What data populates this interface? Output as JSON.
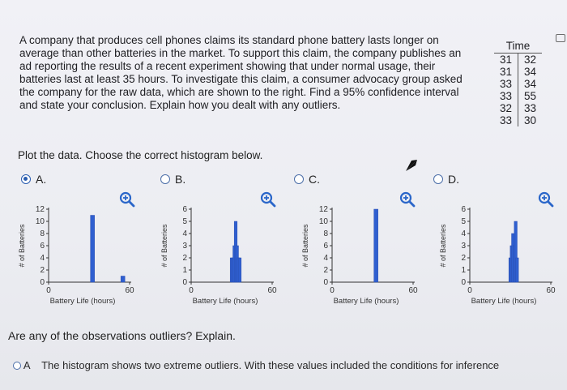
{
  "question": {
    "text": "A company that produces cell phones claims its standard phone battery lasts longer on average than other batteries in the market. To support this claim, the company publishes an ad reporting the results of a recent experiment showing that under normal usage, their batteries last at least 35 hours. To investigate this claim, a consumer advocacy group asked the company for the raw data, which are shown to the right. Find a 95% confidence interval and state your conclusion. Explain how you dealt with any outliers."
  },
  "time_table": {
    "header": "Time",
    "rows": [
      [
        "31",
        "32"
      ],
      [
        "31",
        "34"
      ],
      [
        "33",
        "34"
      ],
      [
        "33",
        "55"
      ],
      [
        "32",
        "33"
      ],
      [
        "33",
        "30"
      ]
    ]
  },
  "prompt": "Plot the data. Choose the correct histogram below.",
  "options": [
    {
      "letter": "A.",
      "selected": true
    },
    {
      "letter": "B.",
      "selected": false
    },
    {
      "letter": "C.",
      "selected": false
    },
    {
      "letter": "D.",
      "selected": false
    }
  ],
  "outliers_question": "Are any of the observations outliers? Explain.",
  "answer_option_letter": "A",
  "answer_option_text": "The histogram shows two extreme outliers. With these values included the conditions for inference",
  "colors": {
    "bar": "#2f5fd0",
    "radio": "#2a5db0",
    "zoom": "#2a66c9",
    "axis": "#333333"
  },
  "icons": {
    "zoom": "magnifier-plus-icon",
    "cursor": "pointer-arrow-icon",
    "tab": "window-tab-icon"
  },
  "chart_data": [
    {
      "type": "bar",
      "option": "A",
      "ylabel": "# of Batteries",
      "xlabel": "Battery Life (hours)",
      "yticks": [
        "12",
        "10",
        "8",
        "6",
        "4",
        "2",
        "0"
      ],
      "xticks": [
        "0",
        "60"
      ],
      "ylim": [
        0,
        12
      ],
      "xlim": [
        0,
        60
      ],
      "bins": [
        {
          "x": 32.5,
          "value": 11
        },
        {
          "x": 55,
          "value": 1
        }
      ]
    },
    {
      "type": "bar",
      "option": "B",
      "ylabel": "# of Batteries",
      "xlabel": "Battery Life (hours)",
      "yticks": [
        "6",
        "5",
        "4",
        "3",
        "2",
        "1",
        "0"
      ],
      "xticks": [
        "0",
        "60"
      ],
      "ylim": [
        0,
        6
      ],
      "xlim": [
        0,
        60
      ],
      "bins": [
        {
          "x": 30,
          "value": 2
        },
        {
          "x": 31,
          "value": 2
        },
        {
          "x": 32,
          "value": 3
        },
        {
          "x": 33,
          "value": 5
        },
        {
          "x": 34,
          "value": 3
        },
        {
          "x": 35,
          "value": 2
        },
        {
          "x": 36,
          "value": 2
        }
      ]
    },
    {
      "type": "bar",
      "option": "C",
      "ylabel": "# of Batteries",
      "xlabel": "Battery Life (hours)",
      "yticks": [
        "12",
        "10",
        "8",
        "6",
        "4",
        "2",
        "0"
      ],
      "xticks": [
        "0",
        "60"
      ],
      "ylim": [
        0,
        12
      ],
      "xlim": [
        0,
        60
      ],
      "bins": [
        {
          "x": 32.5,
          "value": 12
        }
      ]
    },
    {
      "type": "bar",
      "option": "D",
      "ylabel": "# of Batteries",
      "xlabel": "Battery Life (hours)",
      "yticks": [
        "6",
        "5",
        "4",
        "3",
        "2",
        "1",
        "0"
      ],
      "xticks": [
        "0",
        "60"
      ],
      "ylim": [
        0,
        6
      ],
      "xlim": [
        0,
        60
      ],
      "bins": [
        {
          "x": 30,
          "value": 2
        },
        {
          "x": 31,
          "value": 3
        },
        {
          "x": 32,
          "value": 4
        },
        {
          "x": 33,
          "value": 3
        },
        {
          "x": 34,
          "value": 5
        },
        {
          "x": 35,
          "value": 2
        }
      ]
    }
  ]
}
